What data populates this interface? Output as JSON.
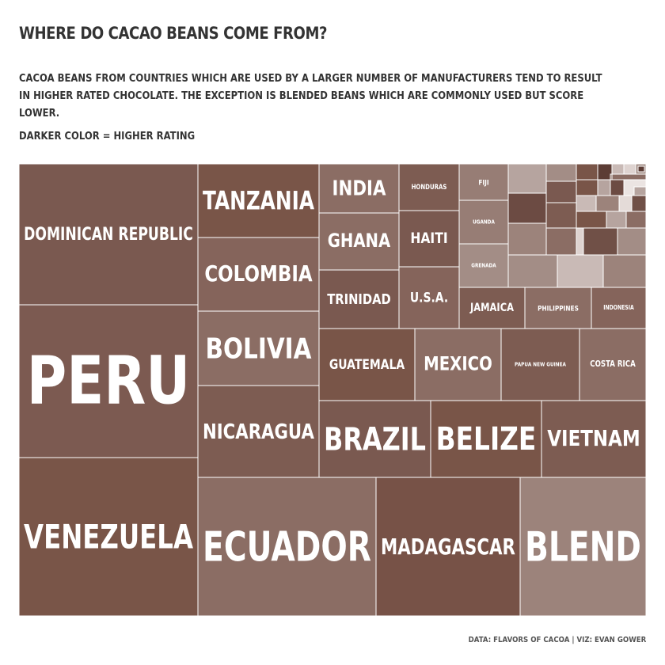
{
  "header": {
    "title": "WHERE DO CACAO BEANS COME FROM?",
    "subtitle": "CACOA BEANS FROM COUNTRIES WHICH ARE USED BY A LARGER NUMBER OF MANUFACTURERS TEND TO RESULT IN HIGHER RATED CHOCOLATE. THE EXCEPTION IS BLENDED BEANS WHICH ARE COMMONLY USED BUT SCORE LOWER.",
    "legend_note": "DARKER COLOR = HIGHER RATING"
  },
  "footer": {
    "credit": "DATA: FLAVORS OF CACOA  |  VIZ: EVAN GOWER"
  },
  "colors": {
    "background": "#ffffff",
    "border": "#ffffff",
    "text": "#333333",
    "label": "#ffffff"
  },
  "chart_data": {
    "type": "treemap",
    "encoding": "area = number of manufacturers, color = average rating",
    "cells": [
      {
        "label": "DOMINICAN REPUBLIC",
        "color": "#7a5950"
      },
      {
        "label": "PERU",
        "color": "#7c5a51"
      },
      {
        "label": "VENEZUELA",
        "color": "#795548"
      },
      {
        "label": "TANZANIA",
        "color": "#795548"
      },
      {
        "label": "COLOMBIA",
        "color": "#85645b"
      },
      {
        "label": "BOLIVIA",
        "color": "#8b6d64"
      },
      {
        "label": "NICARAGUA",
        "color": "#7d5c52"
      },
      {
        "label": "INDIA",
        "color": "#8b6d64"
      },
      {
        "label": "GHANA",
        "color": "#8b6d64"
      },
      {
        "label": "TRINIDAD",
        "color": "#7a5950"
      },
      {
        "label": "HONDURAS",
        "color": "#7d5c52"
      },
      {
        "label": "HAITI",
        "color": "#7a5950"
      },
      {
        "label": "U.S.A.",
        "color": "#85645b"
      },
      {
        "label": "FIJI",
        "color": "#977d75"
      },
      {
        "label": "UGANDA",
        "color": "#977d75"
      },
      {
        "label": "GRENADA",
        "color": "#a38d86"
      },
      {
        "label": "JAMAICA",
        "color": "#7d5c52"
      },
      {
        "label": "PHILIPPINES",
        "color": "#8b6d64"
      },
      {
        "label": "INDONESIA",
        "color": "#85645b"
      },
      {
        "label": "GUATEMALA",
        "color": "#795548"
      },
      {
        "label": "MEXICO",
        "color": "#8b6d64"
      },
      {
        "label": "PAPUA NEW GUINEA",
        "color": "#7d5c52"
      },
      {
        "label": "COSTA RICA",
        "color": "#8b6d64"
      },
      {
        "label": "BRAZIL",
        "color": "#7a5950"
      },
      {
        "label": "BELIZE",
        "color": "#795548"
      },
      {
        "label": "VIETNAM",
        "color": "#7d5c52"
      },
      {
        "label": "ECUADOR",
        "color": "#8b6d64"
      },
      {
        "label": "MADAGASCAR",
        "color": "#775247"
      },
      {
        "label": "BLEND",
        "color": "#9c837b"
      }
    ],
    "unlabeled_cells": [
      {
        "color": "#b6a49f"
      },
      {
        "color": "#6c4b43"
      },
      {
        "color": "#9c837b"
      },
      {
        "color": "#a38d86"
      },
      {
        "color": "#7a5950"
      },
      {
        "color": "#7d5c52"
      },
      {
        "color": "#8b6d64"
      },
      {
        "color": "#705047"
      },
      {
        "color": "#a38d86"
      },
      {
        "color": "#795548"
      },
      {
        "color": "#5c3d35"
      },
      {
        "color": "#c9bab6"
      },
      {
        "color": "#ded3d0"
      },
      {
        "color": "#a38d86"
      },
      {
        "color": "#8b6d64"
      },
      {
        "color": "#795548"
      },
      {
        "color": "#b6a49f"
      },
      {
        "color": "#6c4b43"
      },
      {
        "color": "#ebe4e2"
      },
      {
        "color": "#c9bab6"
      },
      {
        "color": "#9c837b"
      },
      {
        "color": "#e4dbd8"
      },
      {
        "color": "#705047"
      },
      {
        "color": "#795548"
      },
      {
        "color": "#b6a49f"
      },
      {
        "color": "#8b6d64"
      },
      {
        "color": "#a38d86"
      },
      {
        "color": "#c9bab6"
      },
      {
        "color": "#9c837b"
      },
      {
        "color": "#7d5c52"
      },
      {
        "color": "#b6a49f"
      },
      {
        "color": "#ded3d0"
      },
      {
        "color": "#8b6d64"
      },
      {
        "color": "#5c3d35"
      },
      {
        "color": "#c9bab6"
      }
    ]
  }
}
